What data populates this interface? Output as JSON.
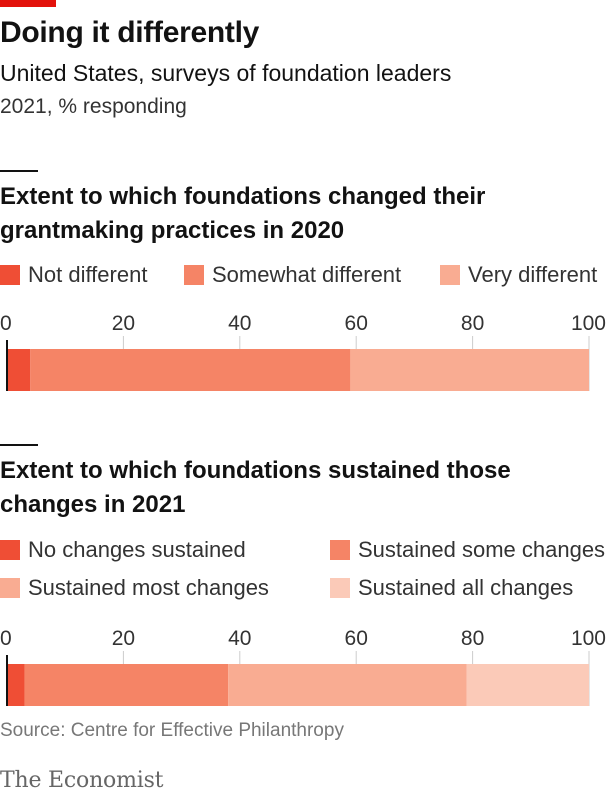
{
  "header": {
    "title": "Doing it differently",
    "subtitle": "United States, surveys of foundation leaders",
    "subsubtitle": "2021, % responding"
  },
  "colors": {
    "brand_red": "#e3120b",
    "c1": "#ef4e35",
    "c2": "#f58466",
    "c3": "#f9ac92",
    "c4": "#fbcab8",
    "grid": "#cccccc",
    "axis": "#121212"
  },
  "source": "Source: Centre for Effective Philanthropy",
  "logo": "The Economist",
  "chart_data": [
    {
      "type": "bar",
      "orientation": "horizontal-stacked",
      "title": "Extent to which foundations changed their grantmaking practices in 2020",
      "xlim": [
        0,
        100
      ],
      "ticks": [
        "0",
        "20",
        "40",
        "60",
        "80",
        "100"
      ],
      "grid": true,
      "legend_placement": "top",
      "series": [
        {
          "name": "Not different",
          "values": [
            4
          ],
          "color": "#ef4e35"
        },
        {
          "name": "Somewhat different",
          "values": [
            55
          ],
          "color": "#f58466"
        },
        {
          "name": "Very different",
          "values": [
            41
          ],
          "color": "#f9ac92"
        }
      ]
    },
    {
      "type": "bar",
      "orientation": "horizontal-stacked",
      "title": "Extent to which foundations sustained those changes in 2021",
      "xlim": [
        0,
        100
      ],
      "ticks": [
        "0",
        "20",
        "40",
        "60",
        "80",
        "100"
      ],
      "grid": true,
      "legend_placement": "top",
      "series": [
        {
          "name": "No changes sustained",
          "values": [
            3
          ],
          "color": "#ef4e35"
        },
        {
          "name": "Sustained some changes",
          "values": [
            35
          ],
          "color": "#f58466"
        },
        {
          "name": "Sustained most changes",
          "values": [
            41
          ],
          "color": "#f9ac92"
        },
        {
          "name": "Sustained all changes",
          "values": [
            21
          ],
          "color": "#fbcab8"
        }
      ]
    }
  ]
}
